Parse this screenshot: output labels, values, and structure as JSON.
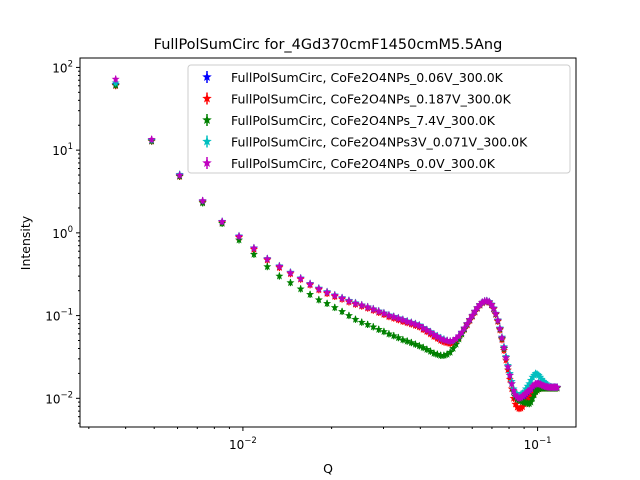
{
  "chart_data": {
    "type": "scatter",
    "title": "FullPolSumCirc for_4Gd370cmF1450cmM5.5Ang",
    "xlabel": "Q",
    "ylabel": "Intensity",
    "xscale": "log",
    "yscale": "log",
    "xlim": [
      0.0028,
      0.135
    ],
    "ylim": [
      0.0045,
      130
    ],
    "xticks": [
      {
        "value": 0.01,
        "label": "10^-2"
      },
      {
        "value": 0.1,
        "label": "10^-1"
      }
    ],
    "yticks": [
      {
        "value": 0.01,
        "label": "10^-2"
      },
      {
        "value": 0.1,
        "label": "10^-1"
      },
      {
        "value": 1,
        "label": "10^0"
      },
      {
        "value": 10,
        "label": "10^1"
      },
      {
        "value": 100,
        "label": "10^2"
      }
    ],
    "marker": "star",
    "error_bars": true,
    "grid": false,
    "legend_position": "top-right",
    "x": [
      0.0037,
      0.0049,
      0.0061,
      0.0073,
      0.0085,
      0.0097,
      0.0109,
      0.0121,
      0.0133,
      0.0145,
      0.0157,
      0.0169,
      0.0181,
      0.0193,
      0.0205,
      0.0217,
      0.0229,
      0.0241,
      0.0253,
      0.0265,
      0.0277,
      0.0289,
      0.0301,
      0.0313,
      0.0325,
      0.0337,
      0.0349,
      0.0361,
      0.0373,
      0.0385,
      0.0397,
      0.0409,
      0.0421,
      0.0433,
      0.0445,
      0.0457,
      0.0469,
      0.0481,
      0.0493,
      0.0505,
      0.0517,
      0.0529,
      0.0541,
      0.0553,
      0.0565,
      0.0577,
      0.0589,
      0.0601,
      0.0613,
      0.0625,
      0.0637,
      0.0649,
      0.0661,
      0.0673,
      0.0685,
      0.0697,
      0.0709,
      0.0721,
      0.0733,
      0.0745,
      0.0757,
      0.0769,
      0.0781,
      0.0793,
      0.0805,
      0.0817,
      0.0829,
      0.0841,
      0.0853,
      0.0865,
      0.0877,
      0.0889,
      0.0901,
      0.0913,
      0.0925,
      0.0937,
      0.0949,
      0.0961,
      0.0973,
      0.0985,
      0.0997,
      0.1009,
      0.1021,
      0.1033,
      0.1045,
      0.1057,
      0.1069,
      0.1081,
      0.1093,
      0.1105,
      0.1117,
      0.1129,
      0.1141,
      0.1153,
      0.1165
    ],
    "series": [
      {
        "name": "FullPolSumCirc, CoFe2O4NPs_0.06V_300.0K",
        "color": "#0000ff",
        "values": [
          62,
          13,
          4.9,
          2.4,
          1.36,
          0.9,
          0.65,
          0.48,
          0.39,
          0.33,
          0.28,
          0.24,
          0.21,
          0.19,
          0.175,
          0.162,
          0.15,
          0.14,
          0.133,
          0.126,
          0.119,
          0.112,
          0.106,
          0.1,
          0.096,
          0.092,
          0.088,
          0.084,
          0.081,
          0.078,
          0.075,
          0.07,
          0.066,
          0.062,
          0.058,
          0.055,
          0.052,
          0.05,
          0.049,
          0.048,
          0.049,
          0.052,
          0.056,
          0.062,
          0.07,
          0.079,
          0.089,
          0.1,
          0.112,
          0.124,
          0.135,
          0.144,
          0.149,
          0.15,
          0.146,
          0.136,
          0.122,
          0.105,
          0.087,
          0.069,
          0.053,
          0.04,
          0.031,
          0.024,
          0.019,
          0.015,
          0.012,
          0.0105,
          0.0098,
          0.0095,
          0.0096,
          0.0098,
          0.0102,
          0.0105,
          0.0108,
          0.011,
          0.012,
          0.013,
          0.014,
          0.0145,
          0.015,
          0.015,
          0.0148,
          0.0145,
          0.0142,
          0.014,
          0.0139,
          0.0138,
          0.0137,
          0.0136,
          0.0136,
          0.0136,
          0.0136,
          0.0136,
          0.0136
        ]
      },
      {
        "name": "FullPolSumCirc, CoFe2O4NPs_0.187V_300.0K",
        "color": "#ff0000",
        "values": [
          60,
          12.8,
          4.8,
          2.35,
          1.33,
          0.88,
          0.63,
          0.47,
          0.38,
          0.32,
          0.275,
          0.235,
          0.205,
          0.185,
          0.17,
          0.158,
          0.146,
          0.137,
          0.13,
          0.123,
          0.116,
          0.109,
          0.103,
          0.097,
          0.093,
          0.089,
          0.085,
          0.082,
          0.079,
          0.076,
          0.073,
          0.068,
          0.064,
          0.06,
          0.056,
          0.053,
          0.05,
          0.048,
          0.047,
          0.046,
          0.047,
          0.05,
          0.054,
          0.06,
          0.068,
          0.077,
          0.087,
          0.098,
          0.11,
          0.122,
          0.133,
          0.142,
          0.147,
          0.148,
          0.144,
          0.134,
          0.12,
          0.103,
          0.085,
          0.067,
          0.051,
          0.038,
          0.029,
          0.022,
          0.017,
          0.013,
          0.01,
          0.0085,
          0.0078,
          0.0075,
          0.0076,
          0.0079,
          0.0085,
          0.009,
          0.0095,
          0.01,
          0.0105,
          0.011,
          0.0115,
          0.012,
          0.0125,
          0.013,
          0.0132,
          0.0133,
          0.0133,
          0.0133,
          0.0133,
          0.0133,
          0.0133,
          0.0133,
          0.0133,
          0.0133,
          0.0133,
          0.0133,
          0.0133
        ]
      },
      {
        "name": "FullPolSumCirc, CoFe2O4NPs_7.4V_300.0K",
        "color": "#008000",
        "values": [
          61,
          12.9,
          4.85,
          2.3,
          1.3,
          0.82,
          0.55,
          0.39,
          0.3,
          0.25,
          0.21,
          0.18,
          0.155,
          0.14,
          0.125,
          0.112,
          0.1,
          0.09,
          0.083,
          0.078,
          0.073,
          0.068,
          0.064,
          0.06,
          0.057,
          0.054,
          0.051,
          0.049,
          0.047,
          0.045,
          0.043,
          0.041,
          0.039,
          0.037,
          0.035,
          0.034,
          0.033,
          0.033,
          0.034,
          0.036,
          0.04,
          0.045,
          0.052,
          0.06,
          0.069,
          0.079,
          0.089,
          0.1,
          0.112,
          0.124,
          0.135,
          0.144,
          0.149,
          0.15,
          0.146,
          0.136,
          0.122,
          0.105,
          0.087,
          0.069,
          0.053,
          0.04,
          0.031,
          0.024,
          0.019,
          0.015,
          0.012,
          0.0105,
          0.0098,
          0.0095,
          0.0093,
          0.0091,
          0.009,
          0.0088,
          0.0087,
          0.0086,
          0.009,
          0.01,
          0.011,
          0.012,
          0.0125,
          0.013,
          0.0132,
          0.0133,
          0.0133,
          0.0133,
          0.0133,
          0.0133,
          0.0133,
          0.0133,
          0.0133,
          0.0133,
          0.0133,
          0.0133,
          0.0133
        ]
      },
      {
        "name": "FullPolSumCirc, CoFe2O4NPs3V_0.071V_300.0K",
        "color": "#00bfbf",
        "values": [
          65,
          13.3,
          5.1,
          2.45,
          1.38,
          0.92,
          0.66,
          0.49,
          0.4,
          0.335,
          0.285,
          0.245,
          0.215,
          0.195,
          0.178,
          0.165,
          0.153,
          0.143,
          0.135,
          0.128,
          0.121,
          0.114,
          0.108,
          0.102,
          0.098,
          0.094,
          0.09,
          0.086,
          0.083,
          0.08,
          0.077,
          0.072,
          0.068,
          0.064,
          0.06,
          0.057,
          0.054,
          0.052,
          0.05,
          0.049,
          0.05,
          0.053,
          0.057,
          0.063,
          0.071,
          0.08,
          0.09,
          0.101,
          0.113,
          0.125,
          0.136,
          0.145,
          0.15,
          0.152,
          0.148,
          0.138,
          0.124,
          0.107,
          0.089,
          0.071,
          0.055,
          0.042,
          0.032,
          0.025,
          0.02,
          0.016,
          0.013,
          0.0115,
          0.011,
          0.0108,
          0.011,
          0.0115,
          0.012,
          0.013,
          0.014,
          0.015,
          0.0165,
          0.018,
          0.019,
          0.02,
          0.0195,
          0.019,
          0.018,
          0.017,
          0.016,
          0.0155,
          0.015,
          0.0145,
          0.014,
          0.0138,
          0.0137,
          0.0136,
          0.0136,
          0.0136,
          0.0136
        ]
      },
      {
        "name": "FullPolSumCirc, CoFe2O4NPs_0.0V_300.0K",
        "color": "#bf00bf",
        "values": [
          72,
          13.5,
          5.0,
          2.45,
          1.37,
          0.91,
          0.655,
          0.485,
          0.395,
          0.33,
          0.282,
          0.242,
          0.212,
          0.192,
          0.176,
          0.163,
          0.151,
          0.141,
          0.134,
          0.127,
          0.12,
          0.113,
          0.107,
          0.101,
          0.097,
          0.093,
          0.089,
          0.085,
          0.082,
          0.079,
          0.076,
          0.071,
          0.067,
          0.063,
          0.059,
          0.056,
          0.053,
          0.051,
          0.05,
          0.049,
          0.05,
          0.053,
          0.057,
          0.063,
          0.071,
          0.08,
          0.09,
          0.101,
          0.113,
          0.125,
          0.136,
          0.145,
          0.15,
          0.151,
          0.147,
          0.137,
          0.123,
          0.106,
          0.088,
          0.07,
          0.054,
          0.041,
          0.031,
          0.024,
          0.019,
          0.015,
          0.0125,
          0.011,
          0.0104,
          0.01,
          0.0102,
          0.0106,
          0.011,
          0.0115,
          0.012,
          0.0125,
          0.013,
          0.014,
          0.0145,
          0.015,
          0.015,
          0.015,
          0.0148,
          0.0145,
          0.0142,
          0.014,
          0.0138,
          0.0137,
          0.0136,
          0.0136,
          0.0136,
          0.0136,
          0.0136,
          0.0136,
          0.0136
        ]
      }
    ]
  }
}
